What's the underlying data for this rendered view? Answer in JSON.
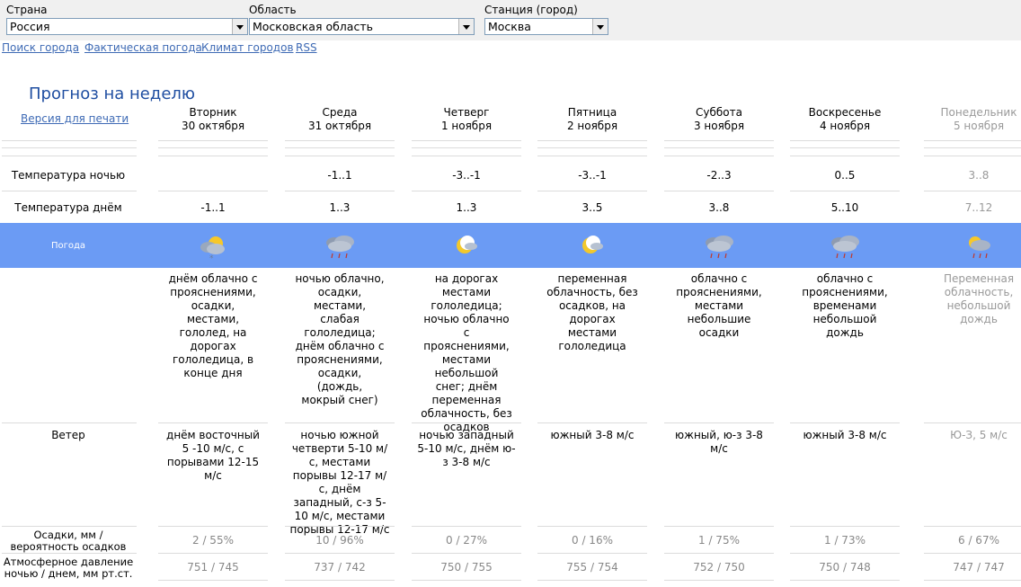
{
  "selectors": [
    {
      "label": "Страна",
      "value": "Россия"
    },
    {
      "label": "Область",
      "value": "Московская область"
    },
    {
      "label": "Станция (город)",
      "value": "Москва"
    }
  ],
  "nav": [
    "Поиск города",
    "Фактическая погода",
    "Климат городов",
    "RSS"
  ],
  "page_title": "Прогноз на неделю",
  "print_link": "Версия для печати",
  "row_labels": {
    "night_temp": "Температура ночью",
    "day_temp": "Температура днём",
    "weather": "Погода",
    "wind": "Ветер",
    "precip_line1": "Осадки, мм  /",
    "precip_line2": "вероятность осадков",
    "pressure_line1": "Атмосферное давление",
    "pressure_line2": "ночью  /  днем, мм рт.ст."
  },
  "days": [
    {
      "dow": "Вторник",
      "date": "30 октября",
      "night": "",
      "day": "-1..1",
      "icon": "cloudy-sun-snow-icon",
      "desc": "днём облачно с прояснениями, осадки, местами, гололед, на дорогах гололедица, в конце дня",
      "wind": "днём восточный 5 -10 м/с, с порывами 12-15 м/с",
      "precip": "2 / 55%",
      "pressure": "751 / 745",
      "greyed": false
    },
    {
      "dow": "Среда",
      "date": "31 октября",
      "night": "-1..1",
      "day": "1..3",
      "icon": "cloud-rain-icon",
      "desc": "ночью облачно, осадки, местами, слабая гололедица; днём облачно с прояснениями, осадки, (дождь, мокрый снег)",
      "wind": "ночью южной четверти 5-10 м/с, местами порывы 12-17 м/с, днём западный, с-з 5-10 м/с, местами порывы 12-17 м/с",
      "precip": "10 / 96%",
      "pressure": "737 / 742",
      "greyed": false
    },
    {
      "dow": "Четверг",
      "date": "1 ноября",
      "night": "-3..-1",
      "day": "1..3",
      "icon": "moon-cloud-icon",
      "desc": "на дорогах местами гололедица; ночью облачно с прояснениями, местами небольшой снег; днём переменная облачность, без осадков",
      "wind": "ночью западный 5-10 м/с, днём ю-з 3-8 м/с",
      "precip": "0 / 27%",
      "pressure": "750 / 755",
      "greyed": false
    },
    {
      "dow": "Пятница",
      "date": "2 ноября",
      "night": "-3..-1",
      "day": "3..5",
      "icon": "moon-cloud-icon",
      "desc": "переменная облачность, без осадков, на дорогах местами гололедица",
      "wind": "южный 3-8 м/с",
      "precip": "0 / 16%",
      "pressure": "755 / 754",
      "greyed": false
    },
    {
      "dow": "Суббота",
      "date": "3 ноября",
      "night": "-2..3",
      "day": "3..8",
      "icon": "cloud-rain-icon",
      "desc": "облачно с прояснениями, местами небольшие осадки",
      "wind": "южный, ю-з 3-8 м/с",
      "precip": "1 / 75%",
      "pressure": "752 / 750",
      "greyed": false
    },
    {
      "dow": "Воскресенье",
      "date": "4 ноября",
      "night": "0..5",
      "day": "5..10",
      "icon": "cloud-rain-icon",
      "desc": "облачно с прояснениями, временами небольшой дождь",
      "wind": "южный 3-8 м/с",
      "precip": "1 / 73%",
      "pressure": "750 / 748",
      "greyed": false
    },
    {
      "dow": "Понедельник",
      "date": "5 ноября",
      "night": "3..8",
      "day": "7..12",
      "icon": "sun-cloud-rain-icon",
      "desc": "Переменная облачность, небольшой дождь",
      "wind": "Ю-З, 5 м/с",
      "precip": "6 / 67%",
      "pressure": "747 / 747",
      "greyed": true
    }
  ]
}
